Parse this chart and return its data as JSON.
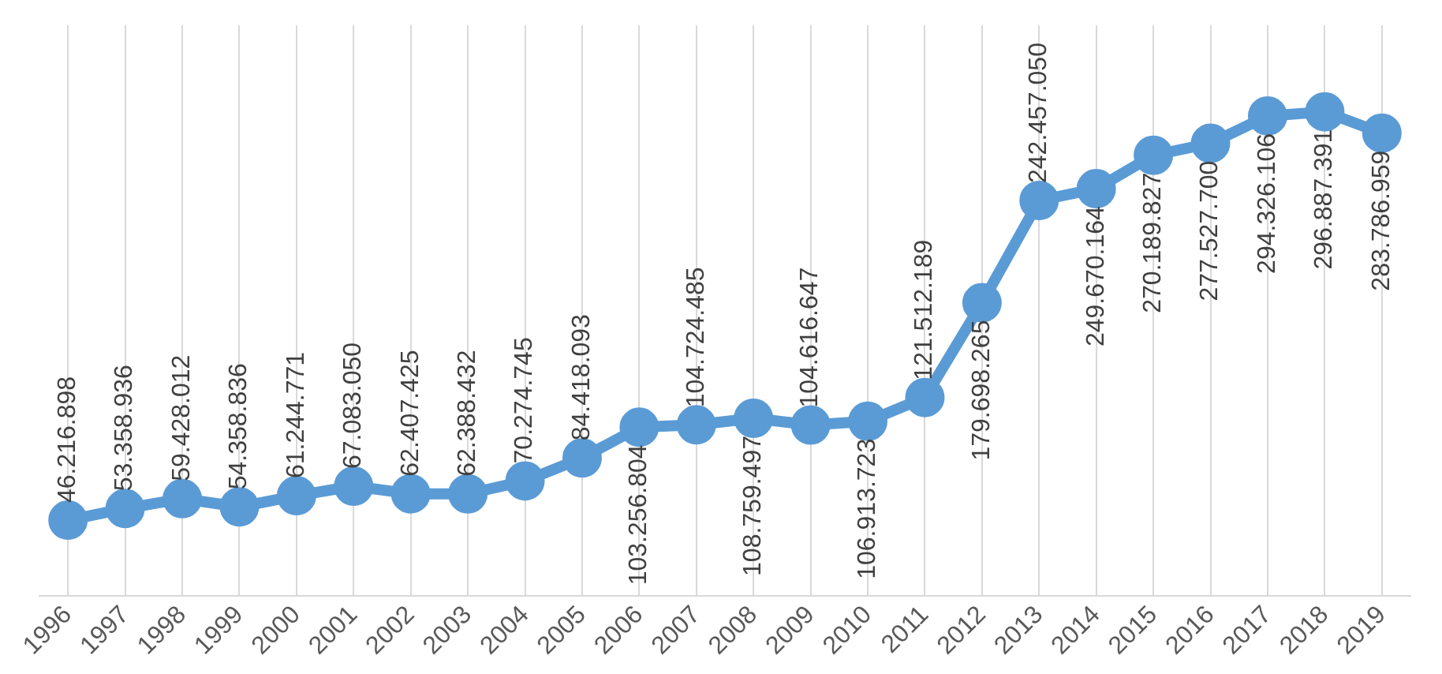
{
  "chart_data": {
    "type": "line",
    "categories": [
      "1996",
      "1997",
      "1998",
      "1999",
      "2000",
      "2001",
      "2002",
      "2003",
      "2004",
      "2005",
      "2006",
      "2007",
      "2008",
      "2009",
      "2010",
      "2011",
      "2012",
      "2013",
      "2014",
      "2015",
      "2016",
      "2017",
      "2018",
      "2019"
    ],
    "series": [
      {
        "color": "#5b9bd5",
        "values": [
          46216898,
          53358936,
          59428012,
          54358836,
          61244771,
          67083050,
          62407425,
          62388432,
          70274745,
          84418093,
          103256804,
          104724485,
          108759497,
          104616647,
          106913723,
          121512189,
          179698265,
          242457050,
          249670164,
          270189827,
          277527700,
          294326106,
          296887391,
          283786959
        ],
        "value_labels": [
          "46.216.898",
          "53.358.936",
          "59.428.012",
          "54.358.836",
          "61.244.771",
          "67.083.050",
          "62.407.425",
          "62.388.432",
          "70.274.745",
          "84.418.093",
          "103.256.804",
          "104.724.485",
          "108.759.497",
          "104.616.647",
          "106.913.723",
          "121.512.189",
          "179.698.265",
          "242.457.050",
          "249.670.164",
          "270.189.827",
          "277.527.700",
          "294.326.106",
          "296.887.391",
          "283.786.959"
        ]
      }
    ],
    "grid": "x",
    "legend": false,
    "marker": "circle",
    "line_style": "solid",
    "tick_labels": "x"
  }
}
